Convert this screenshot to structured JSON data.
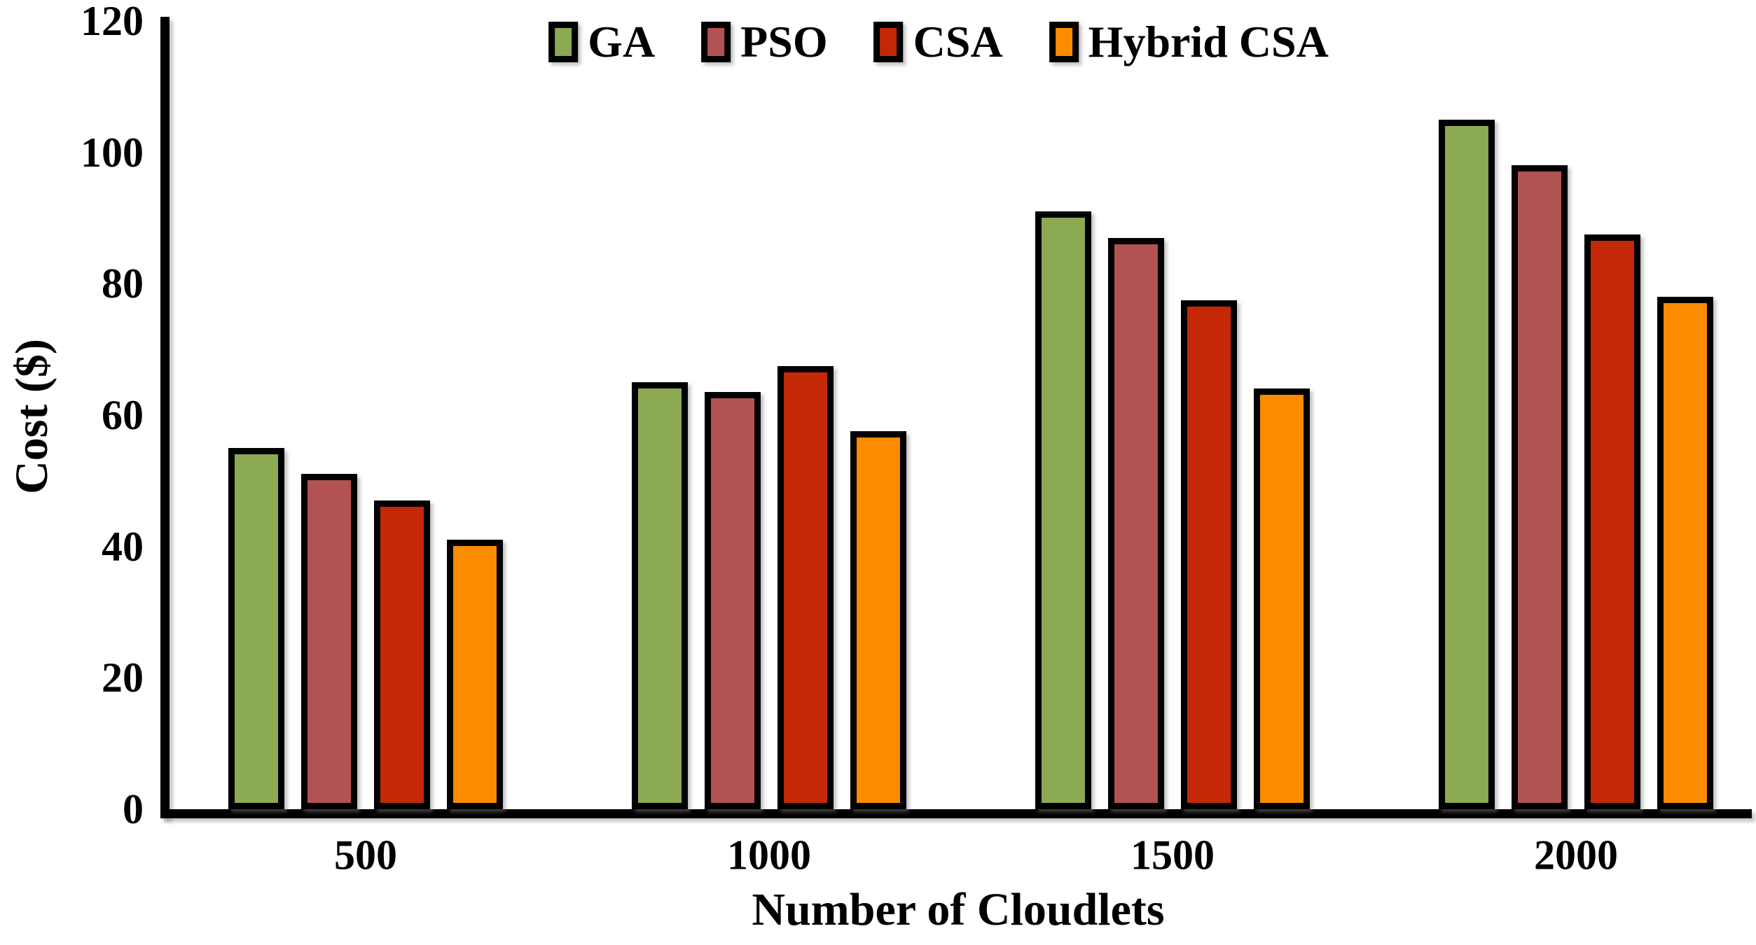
{
  "chart_data": {
    "type": "bar",
    "title": "",
    "xlabel": "Number of Cloudlets",
    "ylabel": "Cost ($)",
    "categories": [
      "500",
      "1000",
      "1500",
      "2000"
    ],
    "series": [
      {
        "name": "GA",
        "color": "#8CA953",
        "values": [
          55,
          65,
          91,
          105
        ]
      },
      {
        "name": "PSO",
        "color": "#B25252",
        "values": [
          51,
          63.5,
          87,
          98
        ]
      },
      {
        "name": "CSA",
        "color": "#C42807",
        "values": [
          47,
          67.5,
          77.5,
          87.5
        ]
      },
      {
        "name": "Hybrid CSA",
        "color": "#FB8C00",
        "values": [
          41,
          57.5,
          64,
          78
        ]
      }
    ],
    "ylim": [
      0,
      120
    ],
    "yticks": [
      0,
      20,
      40,
      60,
      80,
      100,
      120
    ],
    "grid": false,
    "legend_position": "top",
    "axis_color": "#000000",
    "bar_border_color": "#000000"
  }
}
